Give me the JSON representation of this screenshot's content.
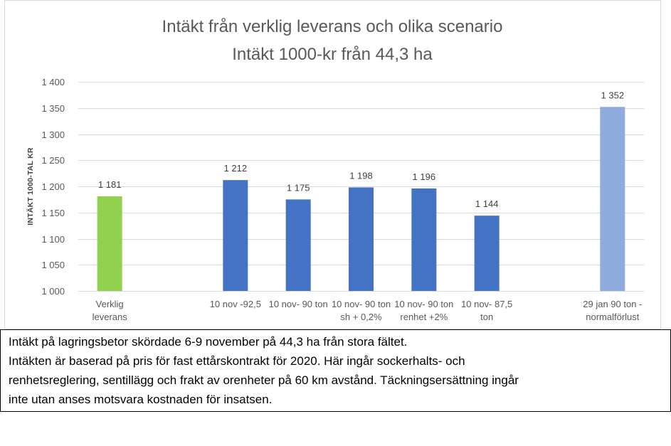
{
  "chart_data": {
    "type": "bar",
    "title": "Intäkt från verklig leverans och olika scenario",
    "subtitle": "Intäkt 1000-kr från 44,3 ha",
    "xlabel": "",
    "ylabel": "INTÄKT 1000-TAL KR",
    "ylim": [
      1000,
      1400
    ],
    "yticks": [
      1000,
      1050,
      1100,
      1150,
      1200,
      1250,
      1300,
      1350,
      1400
    ],
    "ytick_labels": [
      "1 000",
      "1 050",
      "1 100",
      "1 150",
      "1 200",
      "1 250",
      "1 300",
      "1 350",
      "1 400"
    ],
    "grid": true,
    "legend": "none",
    "categories": [
      "Verklig\nleverans",
      "",
      "10 nov -92,5",
      "10 nov- 90 ton",
      "10 nov- 90 ton\nsh + 0,2%",
      "10 nov- 90 ton\nrenhet +2%",
      "10 nov- 87,5\nton",
      "",
      "29 jan 90 ton -\nnormalförlust"
    ],
    "series": [
      {
        "values": [
          1181,
          null,
          1212,
          1175,
          1198,
          1196,
          1144,
          null,
          1352
        ],
        "colors": [
          "#92D050",
          null,
          "#4472C4",
          "#4472C4",
          "#4472C4",
          "#4472C4",
          "#4472C4",
          null,
          "#8FAADC"
        ]
      }
    ],
    "colors": {
      "grid": "#D9D9D9",
      "frame": "#D9D9D9",
      "text": "#595959"
    }
  },
  "note": {
    "lines": [
      "Intäkt på lagringsbetor skördade 6-9 november på 44,3 ha från stora fältet.",
      "Intäkten är baserad på pris för fast ettårskontrakt för 2020. Här ingår sockerhalts- och",
      "renhetsreglering, sentillägg och frakt av orenheter på 60 km avstånd. Täckningsersättning ingår",
      "inte utan anses motsvara kostnaden för insatsen."
    ]
  }
}
